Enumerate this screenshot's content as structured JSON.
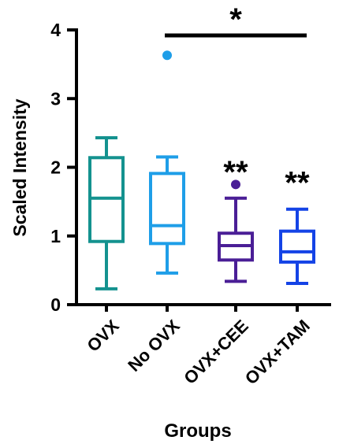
{
  "chart_data": {
    "type": "box",
    "title": "",
    "xlabel": "Groups",
    "ylabel": "Scaled Intensity",
    "ylim": [
      0,
      4
    ],
    "yticks": [
      "0",
      "1",
      "2",
      "3",
      "4"
    ],
    "ytick_values": [
      0,
      1,
      2,
      3,
      4
    ],
    "grid": false,
    "categories": [
      "OVX",
      "No OVX",
      "OVX+CEE",
      "OVX+TAM"
    ],
    "boxes": [
      {
        "name": "OVX",
        "color": "#14928f",
        "min": 0.23,
        "q1": 0.92,
        "median": 1.55,
        "q3": 2.14,
        "max": 2.43,
        "outliers": [],
        "annotation": ""
      },
      {
        "name": "No OVX",
        "color": "#1e9ee8",
        "min": 0.46,
        "q1": 0.89,
        "median": 1.15,
        "q3": 1.91,
        "max": 2.15,
        "outliers": [
          3.63
        ],
        "annotation": ""
      },
      {
        "name": "OVX+CEE",
        "color": "#4a1e96",
        "min": 0.34,
        "q1": 0.65,
        "median": 0.86,
        "q3": 1.04,
        "max": 1.55,
        "outliers": [
          1.75
        ],
        "annotation": "**"
      },
      {
        "name": "OVX+TAM",
        "color": "#1443e6",
        "min": 0.31,
        "q1": 0.62,
        "median": 0.77,
        "q3": 1.07,
        "max": 1.39,
        "outliers": [],
        "annotation": "**"
      }
    ],
    "significance_bar": {
      "from": "No OVX",
      "to": "OVX+TAM",
      "label": "*"
    }
  }
}
